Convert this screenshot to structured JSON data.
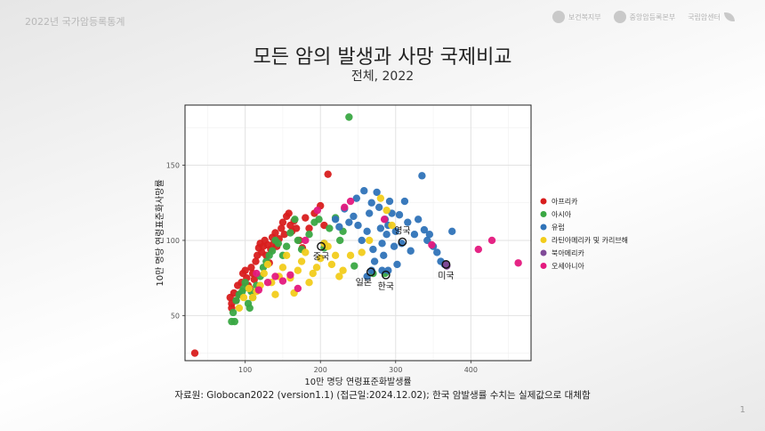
{
  "header": {
    "slide_label": "2022년 국가암등록통계",
    "logos": [
      "보건복지부",
      "중앙암등록본부",
      "국립암센터"
    ]
  },
  "title": "모든 암의 발생과 사망 국제비교",
  "subtitle": "전체, 2022",
  "source": "자료원: Globocan2022  (version1.1)  (접근일:2024.12.02);  한국 암발생률 수치는 실제값으로 대체함",
  "page_number": "1",
  "colors": {
    "아프리카": "#d81e1e",
    "아시아": "#3aa843",
    "유럽": "#2f73b8",
    "라틴아메리카 및 카리브해": "#f2cc1b",
    "북아메리카": "#7f4a97",
    "오세아니아": "#e4197e"
  },
  "chart_data": {
    "type": "scatter",
    "xlabel": "10만 명당 연령표준화발생률",
    "ylabel": "10만 명당 연령표준화사망률",
    "xlim": [
      20,
      480
    ],
    "ylim": [
      20,
      190
    ],
    "xticks": [
      100,
      200,
      300,
      400
    ],
    "yticks": [
      50,
      100,
      150
    ],
    "grid": true,
    "legend_position": "right",
    "series": [
      {
        "name": "아프리카",
        "points": [
          [
            33,
            25
          ],
          [
            80,
            62
          ],
          [
            82,
            58
          ],
          [
            85,
            65
          ],
          [
            88,
            60
          ],
          [
            90,
            70
          ],
          [
            92,
            64
          ],
          [
            95,
            72
          ],
          [
            97,
            78
          ],
          [
            100,
            80
          ],
          [
            102,
            75
          ],
          [
            104,
            70
          ],
          [
            106,
            68
          ],
          [
            108,
            82
          ],
          [
            110,
            78
          ],
          [
            112,
            74
          ],
          [
            114,
            86
          ],
          [
            116,
            90
          ],
          [
            118,
            95
          ],
          [
            120,
            98
          ],
          [
            122,
            92
          ],
          [
            124,
            96
          ],
          [
            126,
            100
          ],
          [
            128,
            90
          ],
          [
            130,
            97
          ],
          [
            132,
            85
          ],
          [
            134,
            94
          ],
          [
            136,
            102
          ],
          [
            138,
            98
          ],
          [
            140,
            105
          ],
          [
            142,
            96
          ],
          [
            145,
            101
          ],
          [
            148,
            108
          ],
          [
            150,
            112
          ],
          [
            152,
            104
          ],
          [
            155,
            116
          ],
          [
            158,
            118
          ],
          [
            160,
            110
          ],
          [
            162,
            106
          ],
          [
            165,
            113
          ],
          [
            168,
            108
          ],
          [
            172,
            100
          ],
          [
            176,
            95
          ],
          [
            180,
            115
          ],
          [
            185,
            108
          ],
          [
            192,
            118
          ],
          [
            200,
            123
          ],
          [
            205,
            110
          ],
          [
            210,
            144
          ],
          [
            82,
            55
          ]
        ]
      },
      {
        "name": "아시아",
        "points": [
          [
            82,
            46
          ],
          [
            86,
            46
          ],
          [
            84,
            52
          ],
          [
            88,
            60
          ],
          [
            92,
            64
          ],
          [
            96,
            66
          ],
          [
            98,
            68
          ],
          [
            100,
            72
          ],
          [
            104,
            58
          ],
          [
            106,
            55
          ],
          [
            108,
            66
          ],
          [
            110,
            62
          ],
          [
            115,
            70
          ],
          [
            120,
            76
          ],
          [
            124,
            82
          ],
          [
            128,
            86
          ],
          [
            132,
            90
          ],
          [
            136,
            93
          ],
          [
            140,
            100
          ],
          [
            144,
            98
          ],
          [
            150,
            90
          ],
          [
            155,
            96
          ],
          [
            160,
            105
          ],
          [
            166,
            114
          ],
          [
            170,
            100
          ],
          [
            175,
            94
          ],
          [
            185,
            104
          ],
          [
            192,
            112
          ],
          [
            198,
            114
          ],
          [
            205,
            95
          ],
          [
            212,
            108
          ],
          [
            220,
            115
          ],
          [
            226,
            100
          ],
          [
            230,
            106
          ],
          [
            238,
            182
          ],
          [
            245,
            83
          ],
          [
            270,
            78
          ],
          [
            286,
            78
          ]
        ]
      },
      {
        "name": "유럽",
        "points": [
          [
            205,
            98
          ],
          [
            220,
            114
          ],
          [
            225,
            109
          ],
          [
            232,
            121
          ],
          [
            238,
            112
          ],
          [
            244,
            116
          ],
          [
            248,
            128
          ],
          [
            250,
            110
          ],
          [
            255,
            100
          ],
          [
            258,
            133
          ],
          [
            262,
            106
          ],
          [
            265,
            118
          ],
          [
            268,
            125
          ],
          [
            270,
            94
          ],
          [
            272,
            86
          ],
          [
            275,
            132
          ],
          [
            278,
            122
          ],
          [
            280,
            108
          ],
          [
            282,
            98
          ],
          [
            284,
            90
          ],
          [
            286,
            114
          ],
          [
            288,
            104
          ],
          [
            290,
            110
          ],
          [
            292,
            126
          ],
          [
            295,
            118
          ],
          [
            298,
            96
          ],
          [
            300,
            106
          ],
          [
            302,
            84
          ],
          [
            305,
            117
          ],
          [
            308,
            98
          ],
          [
            312,
            126
          ],
          [
            316,
            112
          ],
          [
            320,
            93
          ],
          [
            325,
            104
          ],
          [
            330,
            114
          ],
          [
            335,
            143
          ],
          [
            338,
            107
          ],
          [
            342,
            100
          ],
          [
            345,
            104
          ],
          [
            350,
            96
          ],
          [
            355,
            92
          ],
          [
            360,
            86
          ],
          [
            365,
            84
          ],
          [
            375,
            106
          ],
          [
            262,
            76
          ],
          [
            268,
            80
          ],
          [
            282,
            80
          ],
          [
            290,
            80
          ]
        ]
      },
      {
        "name": "라틴아메리카 및 카리브해",
        "points": [
          [
            92,
            55
          ],
          [
            98,
            62
          ],
          [
            105,
            68
          ],
          [
            110,
            62
          ],
          [
            115,
            66
          ],
          [
            120,
            70
          ],
          [
            125,
            78
          ],
          [
            130,
            84
          ],
          [
            135,
            72
          ],
          [
            140,
            64
          ],
          [
            145,
            76
          ],
          [
            150,
            82
          ],
          [
            155,
            90
          ],
          [
            160,
            75
          ],
          [
            165,
            65
          ],
          [
            170,
            80
          ],
          [
            175,
            86
          ],
          [
            180,
            92
          ],
          [
            185,
            72
          ],
          [
            190,
            78
          ],
          [
            195,
            82
          ],
          [
            200,
            88
          ],
          [
            205,
            98
          ],
          [
            210,
            96
          ],
          [
            215,
            84
          ],
          [
            220,
            90
          ],
          [
            225,
            76
          ],
          [
            230,
            80
          ],
          [
            240,
            90
          ],
          [
            255,
            92
          ],
          [
            265,
            100
          ],
          [
            280,
            128
          ],
          [
            288,
            120
          ],
          [
            295,
            110
          ]
        ]
      },
      {
        "name": "북아메리카",
        "points": [
          [
            366,
            84
          ],
          [
            368,
            83
          ]
        ]
      },
      {
        "name": "오세아니아",
        "points": [
          [
            115,
            78
          ],
          [
            118,
            67
          ],
          [
            130,
            72
          ],
          [
            140,
            76
          ],
          [
            150,
            73
          ],
          [
            160,
            77
          ],
          [
            170,
            68
          ],
          [
            180,
            100
          ],
          [
            196,
            120
          ],
          [
            232,
            122
          ],
          [
            240,
            126
          ],
          [
            285,
            114
          ],
          [
            348,
            97
          ],
          [
            410,
            94
          ],
          [
            428,
            100
          ],
          [
            463,
            85
          ]
        ]
      }
    ],
    "annotations": [
      {
        "label": "중국",
        "x": 201,
        "y": 96,
        "label_dx": 0,
        "label_dy": 12
      },
      {
        "label": "일본",
        "x": 267,
        "y": 79,
        "label_dx": -8,
        "label_dy": 12
      },
      {
        "label": "영국",
        "x": 309,
        "y": 99,
        "label_dx": 0,
        "label_dy": -12
      },
      {
        "label": "한국",
        "x": 287,
        "y": 77,
        "label_dx": 0,
        "label_dy": 13
      },
      {
        "label": "미국",
        "x": 367,
        "y": 84,
        "label_dx": 0,
        "label_dy": 13
      }
    ]
  }
}
